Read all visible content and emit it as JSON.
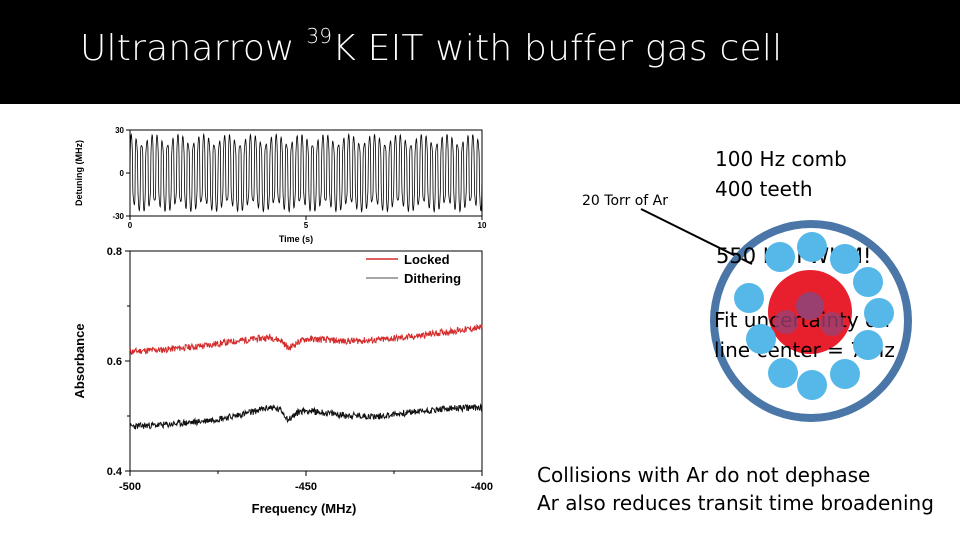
{
  "title": {
    "prefix": "Ultranarrow ",
    "isotope": "39",
    "suffix": "K EIT with buffer gas cell"
  },
  "annotations": {
    "buffer_gas": "20 Torr of Ar",
    "comb_line1": "100 Hz comb",
    "comb_line2": "400 teeth",
    "fwhm": "550 Hz FWHM!",
    "fit_line1": "Fit uncertainty on",
    "fit_line2": "line center = 7 Hz",
    "conclusion1": "Collisions with Ar do not dephase",
    "conclusion2": "Ar also reduces transit time broadening"
  },
  "colors": {
    "locked": "#d42a2a",
    "dithering": "#111111",
    "cell_ring": "#4a76a8",
    "atom": "#55b8e8",
    "buffer_core": "#e8202e",
    "overlap": "#9a4070"
  },
  "chart_data": [
    {
      "type": "line",
      "title": "",
      "xlabel": "Time (s)",
      "ylabel": "Detuning (MHz)",
      "xlim": [
        0,
        10
      ],
      "ylim": [
        -30,
        30
      ],
      "xticks": [
        0,
        5,
        10
      ],
      "yticks": [
        -30,
        0,
        30
      ],
      "tick_labels_x": [
        "0",
        "5",
        "10"
      ],
      "tick_labels_y": [
        "-30",
        "0",
        "30"
      ],
      "description_of_signal": "square-like oscillation between about -27 and +27 MHz",
      "series": [
        {
          "values_amplitude": [
            -27,
            27
          ],
          "periods_in_window": 68
        }
      ],
      "grid": false
    },
    {
      "type": "line",
      "title": "",
      "xlabel": "Frequency (MHz)",
      "ylabel": "Absorbance",
      "xlim": [
        -500,
        -400
      ],
      "ylim": [
        0.4,
        0.8
      ],
      "tick_labels_x": [
        "-500",
        "-450",
        "-400"
      ],
      "tick_labels_y": [
        "0.4",
        "0.6",
        "0.8"
      ],
      "legend_position": "top-right",
      "grid": false,
      "series": [
        {
          "name": "Locked",
          "x": [
            -500,
            -490,
            -480,
            -470,
            -465,
            -460,
            -457,
            -455,
            -452,
            -450,
            -445,
            -440,
            -430,
            -420,
            -410,
            -400
          ],
          "y": [
            0.617,
            0.621,
            0.627,
            0.636,
            0.64,
            0.643,
            0.637,
            0.623,
            0.635,
            0.64,
            0.639,
            0.636,
            0.638,
            0.644,
            0.653,
            0.661
          ]
        },
        {
          "name": "Dithering",
          "x": [
            -500,
            -490,
            -480,
            -470,
            -465,
            -460,
            -457,
            -455,
            -452,
            -450,
            -445,
            -440,
            -430,
            -420,
            -410,
            -400
          ],
          "y": [
            0.481,
            0.484,
            0.49,
            0.5,
            0.508,
            0.516,
            0.51,
            0.493,
            0.508,
            0.51,
            0.506,
            0.502,
            0.499,
            0.507,
            0.513,
            0.516
          ]
        }
      ]
    }
  ]
}
